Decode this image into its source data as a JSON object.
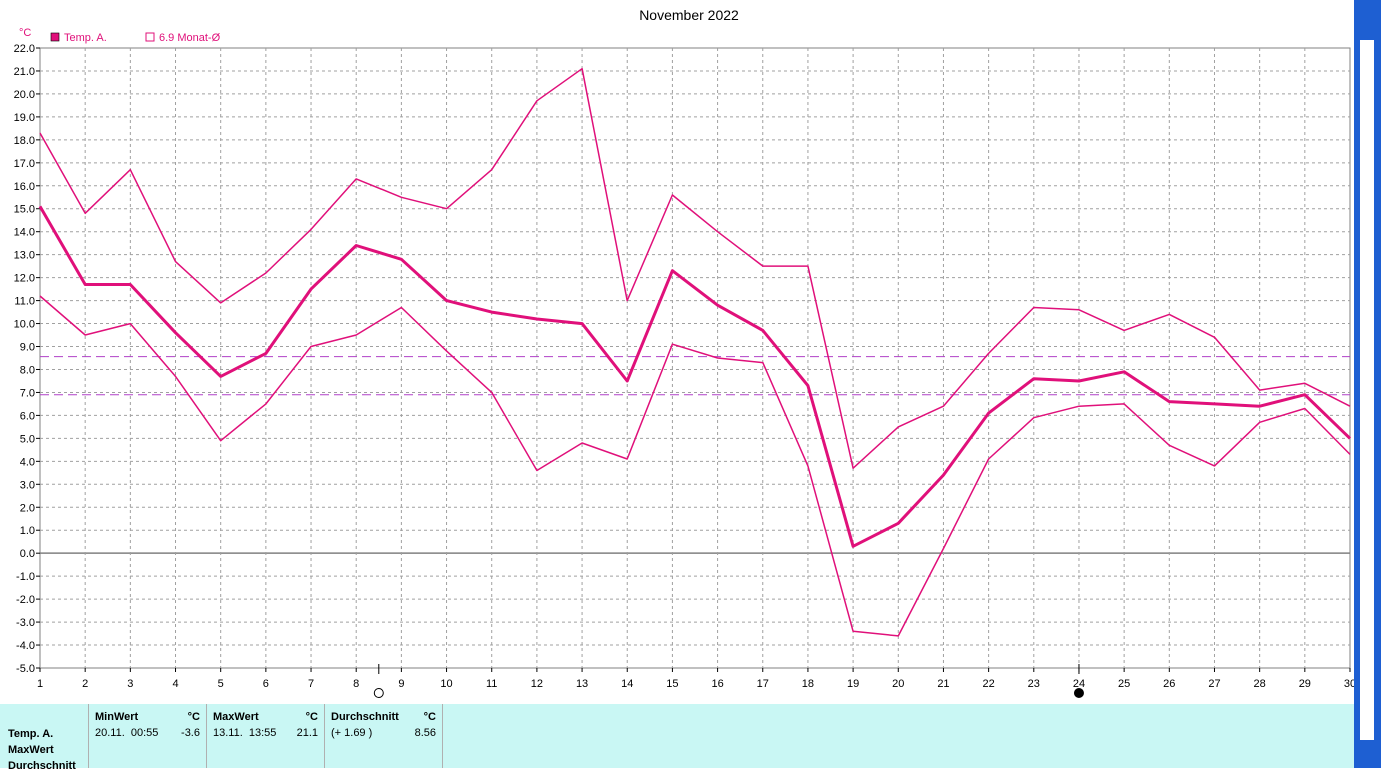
{
  "chart_data": {
    "type": "line",
    "title": "November 2022",
    "y_unit_label": "°C",
    "ylim": [
      -5.0,
      22.0
    ],
    "y_tick_step": 1.0,
    "x": [
      1,
      2,
      3,
      4,
      5,
      6,
      7,
      8,
      9,
      10,
      11,
      12,
      13,
      14,
      15,
      16,
      17,
      18,
      19,
      20,
      21,
      22,
      23,
      24,
      25,
      26,
      27,
      28,
      29,
      30
    ],
    "grid": true,
    "legend_position": "top-left",
    "legend": [
      {
        "label": "Temp. A.",
        "marker": "filled-square",
        "color": "#e0107a"
      },
      {
        "label": "6.9 Monat-Ø",
        "marker": "open-square",
        "color": "#e0107a"
      }
    ],
    "series": [
      {
        "name": "Temp. A.",
        "role": "max",
        "width": 1.5,
        "values": [
          18.3,
          14.8,
          16.7,
          12.7,
          10.9,
          12.2,
          14.1,
          16.3,
          15.5,
          15.0,
          16.7,
          19.7,
          21.1,
          11.0,
          15.6,
          14.0,
          12.5,
          12.5,
          3.7,
          5.5,
          6.4,
          8.7,
          10.7,
          10.6,
          9.7,
          10.4,
          9.4,
          7.1,
          7.4,
          6.4
        ]
      },
      {
        "name": "Temp. A.",
        "role": "mean",
        "width": 3,
        "values": [
          15.1,
          11.7,
          11.7,
          9.6,
          7.7,
          8.7,
          11.5,
          13.4,
          12.8,
          11.0,
          10.5,
          10.2,
          10.0,
          7.5,
          12.3,
          10.8,
          9.7,
          7.3,
          0.3,
          1.3,
          3.4,
          6.1,
          7.6,
          7.5,
          7.9,
          6.6,
          6.5,
          6.4,
          6.9,
          5.0
        ]
      },
      {
        "name": "Temp. A.",
        "role": "min",
        "width": 1.5,
        "values": [
          11.2,
          9.5,
          10.0,
          7.7,
          4.9,
          6.5,
          9.0,
          9.5,
          10.7,
          8.8,
          7.0,
          3.6,
          4.8,
          4.1,
          9.1,
          8.5,
          8.3,
          3.8,
          -3.4,
          -3.6,
          0.2,
          4.1,
          5.9,
          6.4,
          6.5,
          4.7,
          3.8,
          5.7,
          6.3,
          4.3
        ]
      }
    ],
    "reference_lines": [
      {
        "value": 8.56,
        "style": "dashed",
        "color": "#b040c8"
      },
      {
        "value": 6.9,
        "style": "dashed",
        "color": "#b040c8"
      }
    ],
    "markers": [
      {
        "day": 8.5,
        "symbol": "open-circle"
      },
      {
        "day": 24,
        "symbol": "filled-circle"
      }
    ]
  },
  "stats": {
    "row_labels": [
      "Temp. A.",
      "MaxWert",
      "Durchschnitt"
    ],
    "min": {
      "header": "MinWert",
      "unit": "°C",
      "when": "20.11.  00:55",
      "value": "-3.6"
    },
    "max": {
      "header": "MaxWert",
      "unit": "°C",
      "when": "13.11.  13:55",
      "value": "21.1"
    },
    "avg": {
      "header": "Durchschnitt",
      "unit": "°C",
      "delta": "(+ 1.69 )",
      "value": "8.56"
    }
  }
}
